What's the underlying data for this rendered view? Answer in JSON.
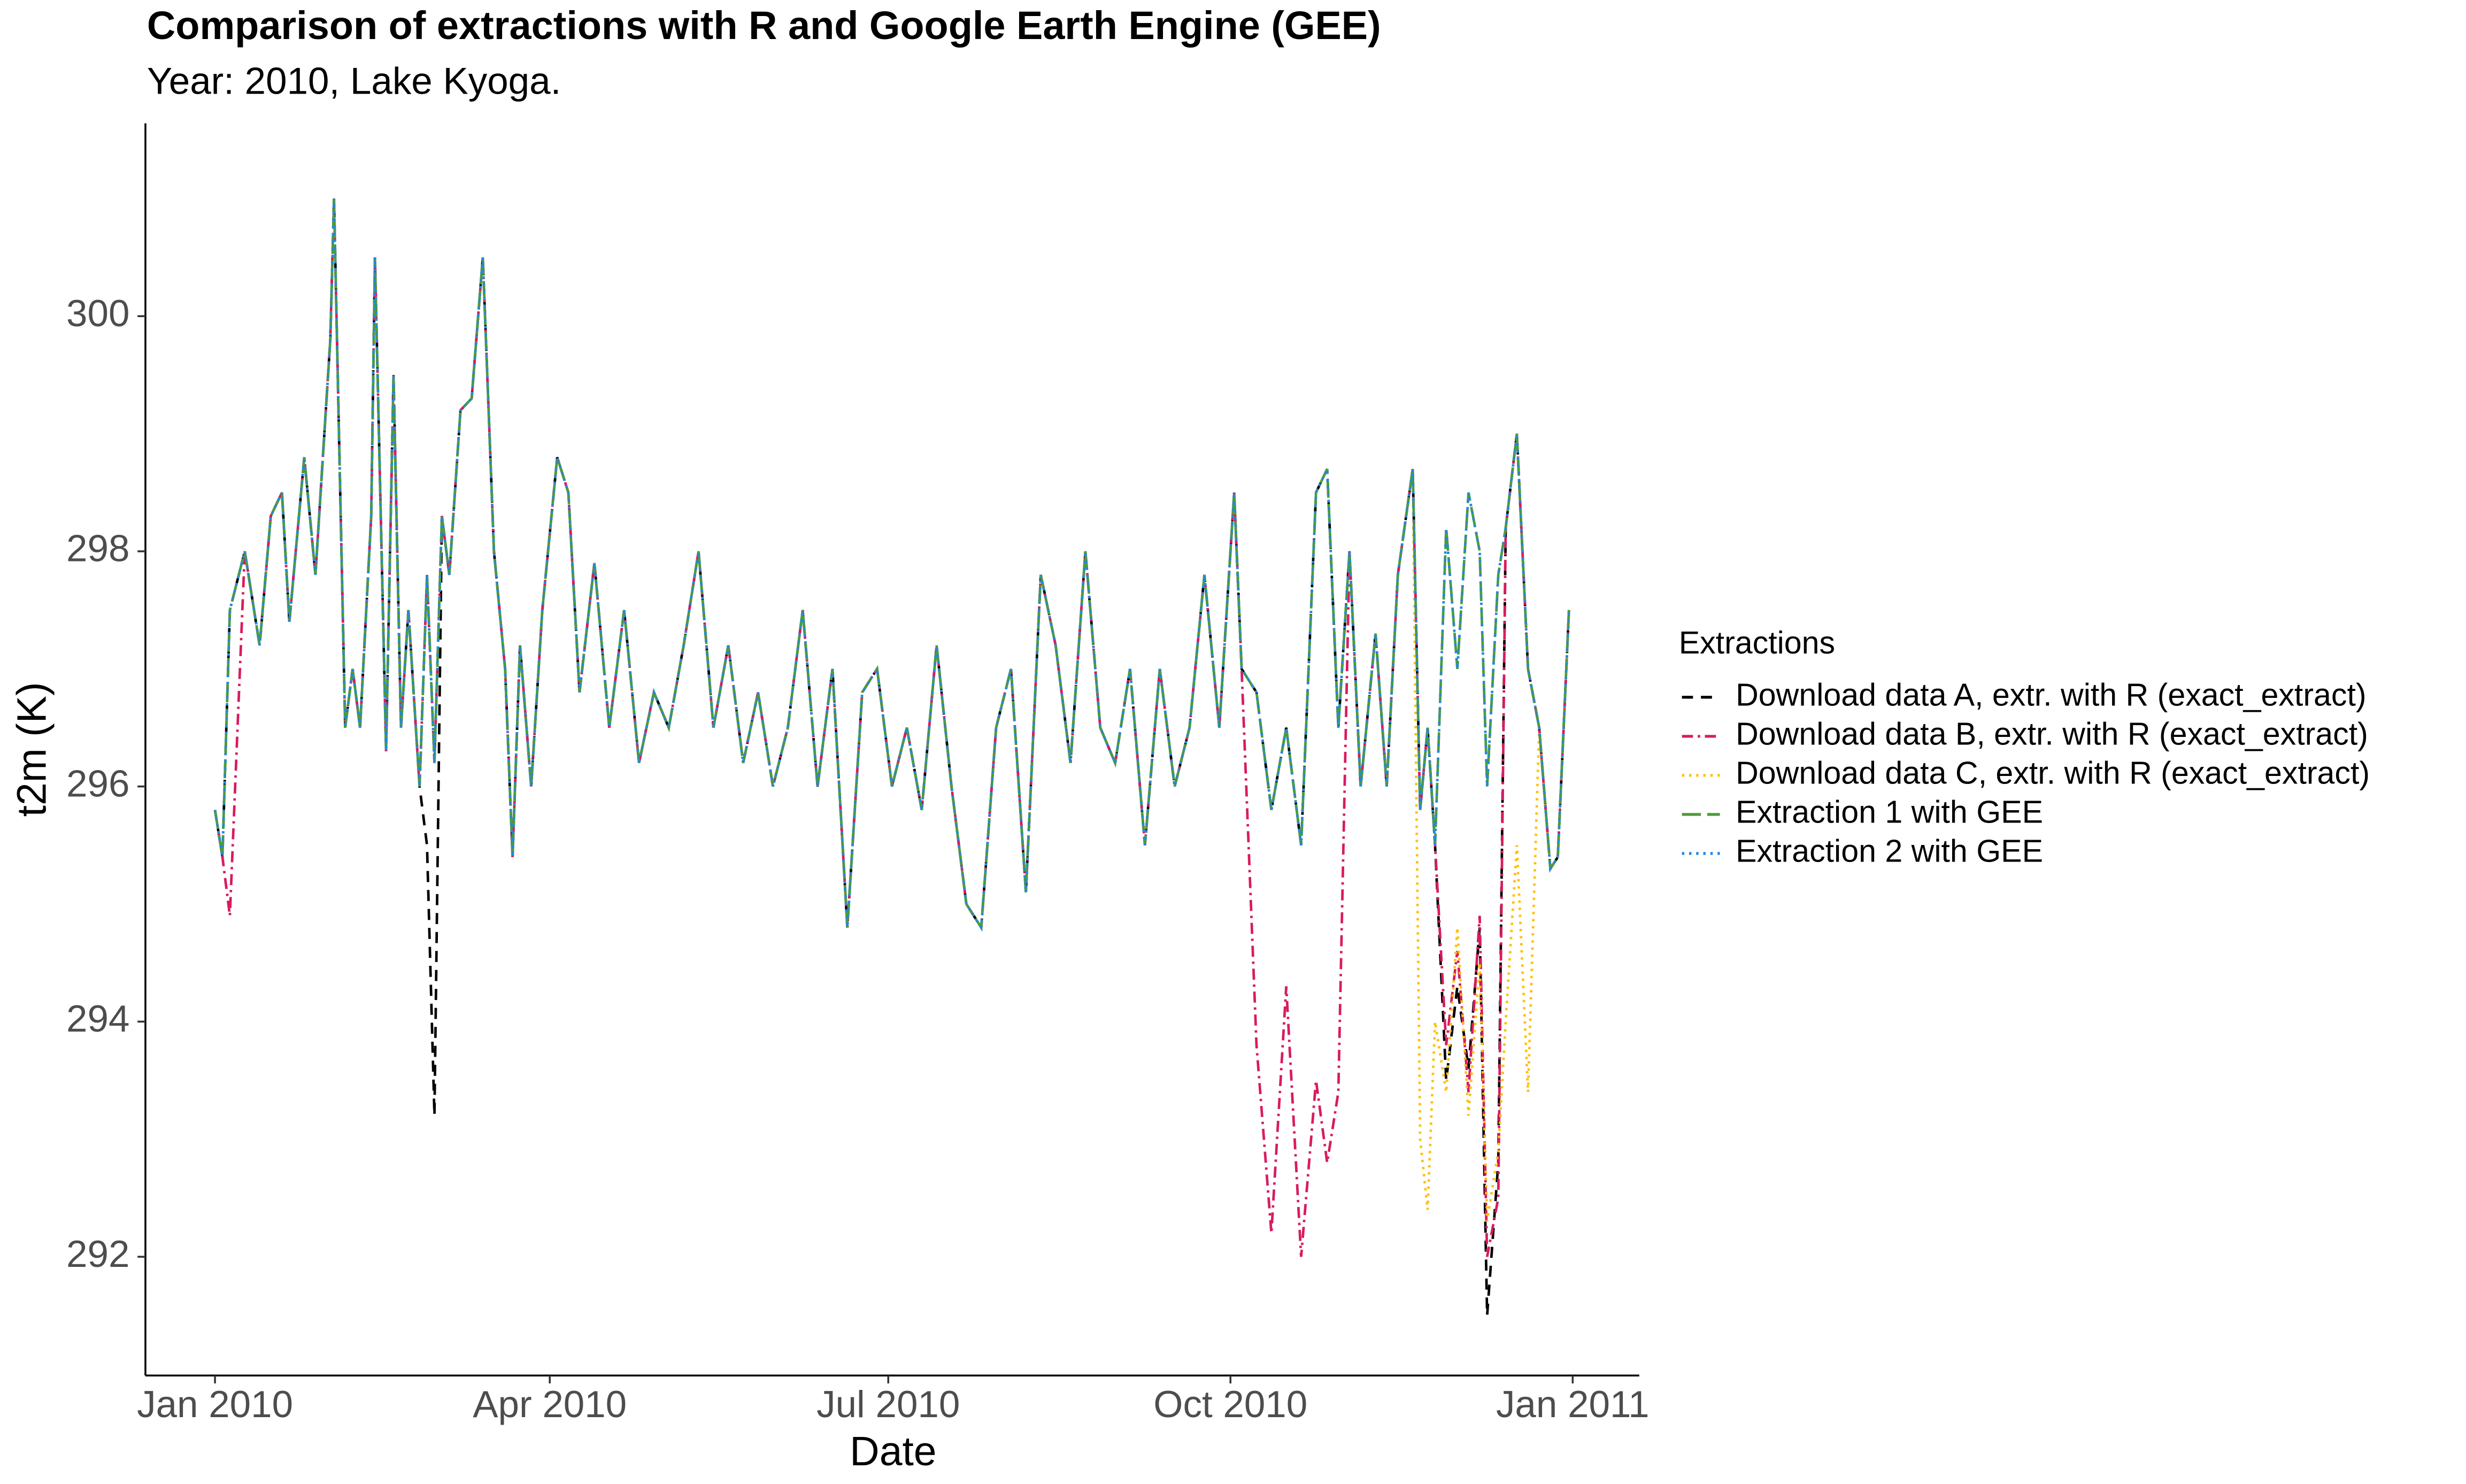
{
  "chart_data": {
    "type": "line",
    "title": "Comparison of extractions with R and Google Earth Engine (GEE)",
    "subtitle": "Year: 2010, Lake Kyoga.",
    "xlabel": "Date",
    "ylabel": "t2m (K)",
    "legend_title": "Extractions",
    "legend": "right",
    "xlim": [
      -18.7,
      382.9
    ],
    "ylim": [
      290.99,
      301.64
    ],
    "xticks": [
      {
        "value": 0,
        "label": "Jan 2010"
      },
      {
        "value": 90,
        "label": "Apr 2010"
      },
      {
        "value": 181,
        "label": "Jul 2010"
      },
      {
        "value": 273,
        "label": "Oct 2010"
      },
      {
        "value": 365,
        "label": "Jan 2011"
      }
    ],
    "yticks": [
      292,
      294,
      296,
      298,
      300
    ],
    "x": [
      0,
      2,
      4,
      8,
      12,
      15,
      18,
      20,
      24,
      27,
      31,
      32,
      35,
      37,
      39,
      42,
      43,
      46,
      48,
      50,
      52,
      55,
      57,
      59,
      61,
      63,
      66,
      69,
      72,
      75,
      78,
      80,
      82,
      85,
      88,
      92,
      95,
      98,
      102,
      106,
      110,
      114,
      118,
      122,
      126,
      130,
      134,
      138,
      142,
      146,
      150,
      154,
      158,
      162,
      166,
      170,
      174,
      178,
      182,
      186,
      190,
      194,
      198,
      202,
      206,
      210,
      214,
      218,
      222,
      226,
      230,
      234,
      238,
      242,
      246,
      250,
      254,
      258,
      262,
      266,
      270,
      274,
      276,
      280,
      284,
      288,
      292,
      296,
      299,
      302,
      305,
      308,
      312,
      315,
      318,
      322,
      324,
      326,
      328,
      331,
      334,
      337,
      340,
      342,
      345,
      347,
      350,
      353,
      356,
      359,
      361,
      364
    ],
    "series": [
      {
        "name": "Download data A, extr. with R (exact_extract)",
        "color": "#000000",
        "linestyle": "dashed",
        "values": [
          295.8,
          295.4,
          297.5,
          298.0,
          297.2,
          298.3,
          298.5,
          297.4,
          298.8,
          297.8,
          299.8,
          301.0,
          296.5,
          297.0,
          296.5,
          298.3,
          300.5,
          296.3,
          299.5,
          296.5,
          297.5,
          296.0,
          295.5,
          293.2,
          298.3,
          297.8,
          299.2,
          299.3,
          300.5,
          298.0,
          297.0,
          295.4,
          297.2,
          296.0,
          297.5,
          298.8,
          298.5,
          296.8,
          297.9,
          296.5,
          297.5,
          296.2,
          296.8,
          296.5,
          297.2,
          298.0,
          296.5,
          297.2,
          296.2,
          296.8,
          296.0,
          296.5,
          297.5,
          296.0,
          297.0,
          294.8,
          296.8,
          297.0,
          296.0,
          296.5,
          295.8,
          297.2,
          296.0,
          295.0,
          294.8,
          296.5,
          297.0,
          295.1,
          297.8,
          297.2,
          296.2,
          298.0,
          296.5,
          296.2,
          297.0,
          295.5,
          297.0,
          296.0,
          296.5,
          297.8,
          296.5,
          298.5,
          297.0,
          296.8,
          295.8,
          296.5,
          295.5,
          298.5,
          298.7,
          296.5,
          298.0,
          296.0,
          297.3,
          296.0,
          297.8,
          298.7,
          295.8,
          296.5,
          295.5,
          293.5,
          294.3,
          293.6,
          294.8,
          291.5,
          292.8,
          298.2,
          299.0,
          297.0,
          296.5,
          295.3,
          295.4,
          297.5
        ]
      },
      {
        "name": "Download data B, extr. with R (exact_extract)",
        "color": "#d81b60",
        "linestyle": "dashdot",
        "values": [
          295.8,
          295.4,
          294.9,
          298.0,
          297.2,
          298.3,
          298.5,
          297.4,
          298.8,
          297.8,
          299.8,
          301.0,
          296.5,
          297.0,
          296.5,
          298.3,
          300.5,
          296.3,
          299.5,
          296.5,
          297.5,
          296.0,
          297.8,
          296.2,
          298.3,
          297.8,
          299.2,
          299.3,
          300.5,
          298.0,
          297.0,
          295.4,
          297.2,
          296.0,
          297.5,
          298.8,
          298.5,
          296.8,
          297.9,
          296.5,
          297.5,
          296.2,
          296.8,
          296.5,
          297.2,
          298.0,
          296.5,
          297.2,
          296.2,
          296.8,
          296.0,
          296.5,
          297.5,
          296.0,
          297.0,
          294.8,
          296.8,
          297.0,
          296.0,
          296.5,
          295.8,
          297.2,
          296.0,
          295.0,
          294.8,
          296.5,
          297.0,
          295.1,
          297.8,
          297.2,
          296.2,
          298.0,
          296.5,
          296.2,
          297.0,
          295.5,
          297.0,
          296.0,
          296.5,
          297.8,
          296.5,
          298.5,
          297.0,
          293.8,
          292.2,
          294.3,
          292.0,
          293.5,
          292.8,
          293.4,
          298.0,
          296.0,
          297.3,
          296.0,
          297.8,
          298.7,
          295.8,
          296.5,
          295.5,
          293.8,
          294.6,
          293.4,
          294.9,
          292.0,
          292.5,
          298.2,
          299.0,
          297.0,
          296.5,
          295.3,
          295.4,
          297.5
        ]
      },
      {
        "name": "Download data C, extr. with R (exact_extract)",
        "color": "#ffc107",
        "linestyle": "dotted",
        "values": [
          295.8,
          295.4,
          297.5,
          298.0,
          297.2,
          298.3,
          298.5,
          297.4,
          298.8,
          297.8,
          299.8,
          301.0,
          296.5,
          297.0,
          296.5,
          298.3,
          300.5,
          296.3,
          299.5,
          296.5,
          297.5,
          296.0,
          297.8,
          296.2,
          298.3,
          297.8,
          299.2,
          299.3,
          300.5,
          298.0,
          297.0,
          295.4,
          297.2,
          296.0,
          297.5,
          298.8,
          298.5,
          296.8,
          297.9,
          296.5,
          297.5,
          296.2,
          296.8,
          296.5,
          297.2,
          298.0,
          296.5,
          297.2,
          296.2,
          296.8,
          296.0,
          296.5,
          297.5,
          296.0,
          297.0,
          294.8,
          296.8,
          297.0,
          296.0,
          296.5,
          295.8,
          297.2,
          296.0,
          295.0,
          294.8,
          296.5,
          297.0,
          295.1,
          297.8,
          297.2,
          296.2,
          298.0,
          296.5,
          296.2,
          297.0,
          295.5,
          297.0,
          296.0,
          296.5,
          297.8,
          296.5,
          298.5,
          297.0,
          296.8,
          295.8,
          296.5,
          295.5,
          298.5,
          298.7,
          296.5,
          298.0,
          296.0,
          297.3,
          296.0,
          297.8,
          298.7,
          293.0,
          292.4,
          294.0,
          293.4,
          294.8,
          293.2,
          294.5,
          292.3,
          292.9,
          294.0,
          295.5,
          293.4,
          296.5,
          295.3,
          295.4,
          297.5
        ]
      },
      {
        "name": "Extraction 1 with GEE",
        "color": "#4f9a3a",
        "linestyle": "longdash",
        "values": [
          295.8,
          295.4,
          297.5,
          298.0,
          297.2,
          298.3,
          298.5,
          297.4,
          298.8,
          297.8,
          299.8,
          301.0,
          296.5,
          297.0,
          296.5,
          298.3,
          300.5,
          296.3,
          299.5,
          296.5,
          297.5,
          296.0,
          297.8,
          296.2,
          298.3,
          297.8,
          299.2,
          299.3,
          300.5,
          298.0,
          297.0,
          295.4,
          297.2,
          296.0,
          297.5,
          298.8,
          298.5,
          296.8,
          297.9,
          296.5,
          297.5,
          296.2,
          296.8,
          296.5,
          297.2,
          298.0,
          296.5,
          297.2,
          296.2,
          296.8,
          296.0,
          296.5,
          297.5,
          296.0,
          297.0,
          294.8,
          296.8,
          297.0,
          296.0,
          296.5,
          295.8,
          297.2,
          296.0,
          295.0,
          294.8,
          296.5,
          297.0,
          295.1,
          297.8,
          297.2,
          296.2,
          298.0,
          296.5,
          296.2,
          297.0,
          295.5,
          297.0,
          296.0,
          296.5,
          297.8,
          296.5,
          298.5,
          297.0,
          296.8,
          295.8,
          296.5,
          295.5,
          298.5,
          298.7,
          296.5,
          298.0,
          296.0,
          297.3,
          296.0,
          297.8,
          298.7,
          295.8,
          296.5,
          295.5,
          298.2,
          297.0,
          298.5,
          298.0,
          296.0,
          297.8,
          298.2,
          299.0,
          297.0,
          296.5,
          295.3,
          295.4,
          297.5
        ]
      },
      {
        "name": "Extraction 2 with GEE",
        "color": "#1e88e5",
        "linestyle": "dotted",
        "values": [
          295.8,
          295.4,
          297.5,
          298.0,
          297.2,
          298.3,
          298.5,
          297.4,
          298.8,
          297.8,
          299.8,
          301.0,
          296.5,
          297.0,
          296.5,
          298.3,
          300.5,
          296.3,
          299.5,
          296.5,
          297.5,
          296.0,
          297.8,
          296.2,
          298.3,
          297.8,
          299.2,
          299.3,
          300.5,
          298.0,
          297.0,
          295.4,
          297.2,
          296.0,
          297.5,
          298.8,
          298.5,
          296.8,
          297.9,
          296.5,
          297.5,
          296.2,
          296.8,
          296.5,
          297.2,
          298.0,
          296.5,
          297.2,
          296.2,
          296.8,
          296.0,
          296.5,
          297.5,
          296.0,
          297.0,
          294.8,
          296.8,
          297.0,
          296.0,
          296.5,
          295.8,
          297.2,
          296.0,
          295.0,
          294.8,
          296.5,
          297.0,
          295.1,
          297.8,
          297.2,
          296.2,
          298.0,
          296.5,
          296.2,
          297.0,
          295.5,
          297.0,
          296.0,
          296.5,
          297.8,
          296.5,
          298.5,
          297.0,
          296.8,
          295.8,
          296.5,
          295.5,
          298.5,
          298.7,
          296.5,
          298.0,
          296.0,
          297.3,
          296.0,
          297.8,
          298.7,
          295.8,
          296.5,
          295.5,
          298.2,
          297.0,
          298.5,
          298.0,
          296.0,
          297.8,
          298.2,
          299.0,
          297.0,
          296.5,
          295.3,
          295.4,
          297.5
        ]
      }
    ]
  }
}
